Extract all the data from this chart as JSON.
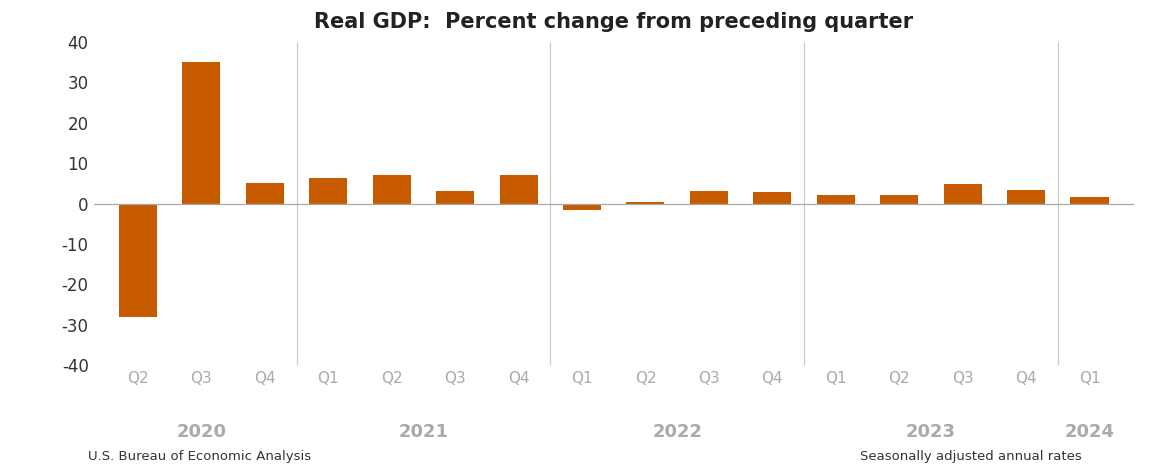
{
  "title": "Real GDP:  Percent change from preceding quarter",
  "categories": [
    "Q2",
    "Q3",
    "Q4",
    "Q1",
    "Q2",
    "Q3",
    "Q4",
    "Q1",
    "Q2",
    "Q3",
    "Q4",
    "Q1",
    "Q2",
    "Q3",
    "Q4",
    "Q1"
  ],
  "values": [
    -28.0,
    35.0,
    5.0,
    6.3,
    7.0,
    3.2,
    7.0,
    -1.6,
    0.5,
    3.2,
    2.9,
    2.2,
    2.1,
    4.9,
    3.4,
    1.6
  ],
  "year_groups": [
    {
      "label": "2020",
      "indices": [
        0,
        1,
        2
      ]
    },
    {
      "label": "2021",
      "indices": [
        3,
        4,
        5,
        6
      ]
    },
    {
      "label": "2022",
      "indices": [
        7,
        8,
        9,
        10
      ]
    },
    {
      "label": "2023",
      "indices": [
        11,
        12,
        13,
        14
      ]
    },
    {
      "label": "2024",
      "indices": [
        15
      ]
    }
  ],
  "year_dividers": [
    2.5,
    6.5,
    10.5,
    14.5
  ],
  "bar_color": "#C85A00",
  "ylim": [
    -40,
    40
  ],
  "yticks": [
    -40,
    -30,
    -20,
    -10,
    0,
    10,
    20,
    30,
    40
  ],
  "footnote_left": "U.S. Bureau of Economic Analysis",
  "footnote_right": "Seasonally adjusted annual rates",
  "background_color": "#ffffff",
  "bar_width": 0.6
}
